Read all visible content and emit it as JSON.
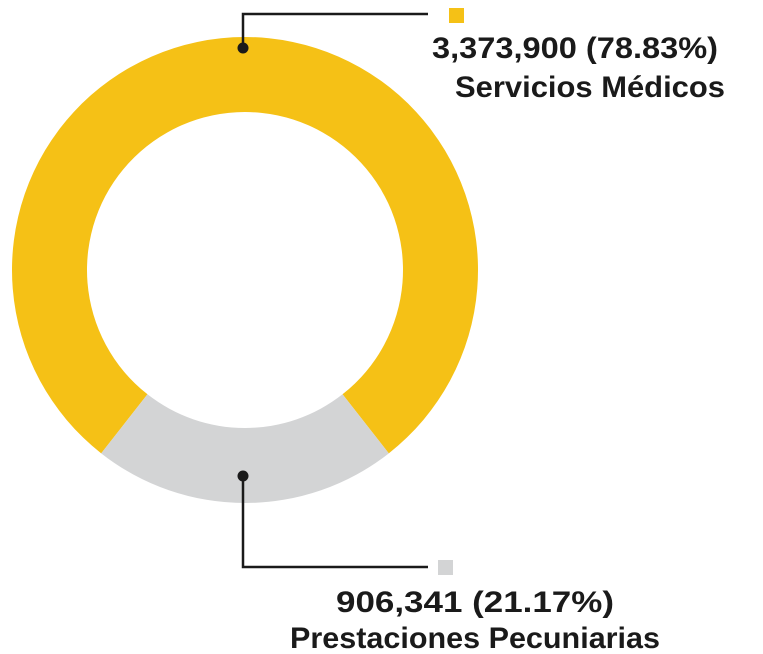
{
  "chart_data": {
    "type": "pie",
    "variant": "donut",
    "title": "",
    "slices": [
      {
        "label": "Servicios Médicos",
        "value": 3373900,
        "value_text": "3,373,900 (78.83%)",
        "percent": 78.83,
        "color": "#F5C116"
      },
      {
        "label": "Prestaciones Pecuniarias",
        "value": 906341,
        "value_text": "906,341 (21.17%)",
        "percent": 21.17,
        "color": "#D3D4D5"
      }
    ],
    "legend": "callouts"
  }
}
